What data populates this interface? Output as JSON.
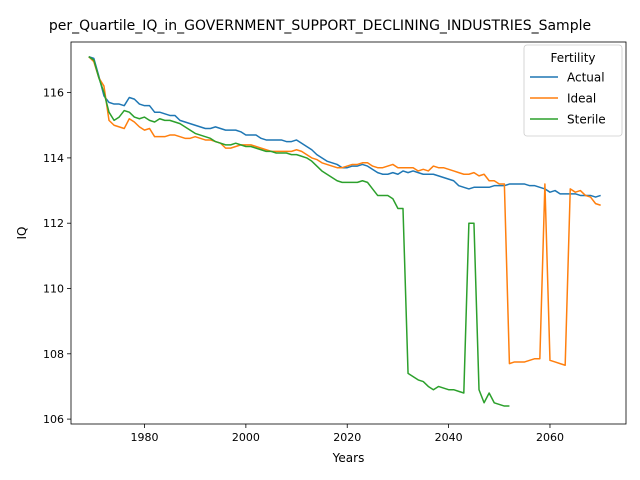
{
  "chart_data": {
    "type": "line",
    "title": "per_Quartile_IQ_in_GOVERNMENT_SUPPORT_DECLINING_INDUSTRIES_Sample",
    "xlabel": "Years",
    "ylabel": "IQ",
    "xlim": [
      1965.5,
      2075
    ],
    "ylim": [
      105.85,
      117.55
    ],
    "x_ticks": [
      1980,
      2000,
      2020,
      2040,
      2060
    ],
    "x_tick_labels": [
      "1980",
      "2000",
      "2020",
      "2040",
      "2060"
    ],
    "y_ticks": [
      106,
      108,
      110,
      112,
      114,
      116
    ],
    "y_tick_labels": [
      "106",
      "108",
      "110",
      "112",
      "114",
      "116"
    ],
    "grid": false,
    "legend": {
      "title": "Fertility",
      "position": "top-right"
    },
    "series": [
      {
        "name": "Actual",
        "color": "#1f77b4",
        "x": [
          1969,
          1970,
          1971,
          1972,
          1973,
          1974,
          1975,
          1976,
          1977,
          1978,
          1979,
          1980,
          1981,
          1982,
          1983,
          1984,
          1985,
          1986,
          1987,
          1988,
          1989,
          1990,
          1991,
          1992,
          1993,
          1994,
          1995,
          1996,
          1997,
          1998,
          1999,
          2000,
          2001,
          2002,
          2003,
          2004,
          2005,
          2006,
          2007,
          2008,
          2009,
          2010,
          2011,
          2012,
          2013,
          2014,
          2015,
          2016,
          2017,
          2018,
          2019,
          2020,
          2021,
          2022,
          2023,
          2024,
          2025,
          2026,
          2027,
          2028,
          2029,
          2030,
          2031,
          2032,
          2033,
          2034,
          2035,
          2036,
          2037,
          2038,
          2039,
          2040,
          2041,
          2042,
          2043,
          2044,
          2045,
          2046,
          2047,
          2048,
          2049,
          2050,
          2051,
          2052,
          2053,
          2054,
          2055,
          2056,
          2057,
          2058,
          2059,
          2060,
          2061,
          2062,
          2063,
          2064,
          2065,
          2066,
          2067,
          2068,
          2069,
          2070
        ],
        "y": [
          117.1,
          117.05,
          116.5,
          115.9,
          115.7,
          115.65,
          115.65,
          115.6,
          115.85,
          115.8,
          115.65,
          115.6,
          115.6,
          115.4,
          115.4,
          115.35,
          115.3,
          115.3,
          115.15,
          115.1,
          115.05,
          115.0,
          114.95,
          114.9,
          114.9,
          114.95,
          114.9,
          114.85,
          114.85,
          114.85,
          114.8,
          114.7,
          114.7,
          114.7,
          114.6,
          114.55,
          114.55,
          114.55,
          114.55,
          114.5,
          114.5,
          114.55,
          114.45,
          114.35,
          114.25,
          114.1,
          114.0,
          113.9,
          113.85,
          113.8,
          113.7,
          113.7,
          113.75,
          113.75,
          113.8,
          113.75,
          113.65,
          113.55,
          113.5,
          113.5,
          113.55,
          113.5,
          113.6,
          113.55,
          113.6,
          113.55,
          113.5,
          113.5,
          113.5,
          113.45,
          113.4,
          113.35,
          113.3,
          113.15,
          113.1,
          113.05,
          113.1,
          113.1,
          113.1,
          113.1,
          113.15,
          113.15,
          113.15,
          113.2,
          113.2,
          113.2,
          113.2,
          113.15,
          113.15,
          113.1,
          113.05,
          112.95,
          113.0,
          112.9,
          112.9,
          112.9,
          112.9,
          112.85,
          112.85,
          112.85,
          112.8,
          112.85
        ]
      },
      {
        "name": "Ideal",
        "color": "#ff7f0e",
        "x": [
          1969,
          1970,
          1971,
          1972,
          1973,
          1974,
          1975,
          1976,
          1977,
          1978,
          1979,
          1980,
          1981,
          1982,
          1983,
          1984,
          1985,
          1986,
          1987,
          1988,
          1989,
          1990,
          1991,
          1992,
          1993,
          1994,
          1995,
          1996,
          1997,
          1998,
          1999,
          2000,
          2001,
          2002,
          2003,
          2004,
          2005,
          2006,
          2007,
          2008,
          2009,
          2010,
          2011,
          2012,
          2013,
          2014,
          2015,
          2016,
          2017,
          2018,
          2019,
          2020,
          2021,
          2022,
          2023,
          2024,
          2025,
          2026,
          2027,
          2028,
          2029,
          2030,
          2031,
          2032,
          2033,
          2034,
          2035,
          2036,
          2037,
          2038,
          2039,
          2040,
          2041,
          2042,
          2043,
          2044,
          2045,
          2046,
          2047,
          2048,
          2049,
          2050,
          2051,
          2052,
          2053,
          2054,
          2055,
          2056,
          2057,
          2058,
          2059,
          2060,
          2061,
          2062,
          2063,
          2064,
          2065,
          2066,
          2067,
          2068,
          2069,
          2070
        ],
        "y": [
          117.1,
          116.95,
          116.45,
          116.2,
          115.15,
          115.0,
          114.95,
          114.9,
          115.2,
          115.1,
          114.95,
          114.85,
          114.9,
          114.65,
          114.65,
          114.65,
          114.7,
          114.7,
          114.65,
          114.6,
          114.6,
          114.65,
          114.6,
          114.55,
          114.55,
          114.5,
          114.45,
          114.3,
          114.3,
          114.35,
          114.4,
          114.4,
          114.4,
          114.35,
          114.3,
          114.25,
          114.2,
          114.2,
          114.2,
          114.2,
          114.2,
          114.25,
          114.2,
          114.1,
          114.0,
          113.95,
          113.85,
          113.8,
          113.75,
          113.7,
          113.7,
          113.75,
          113.8,
          113.8,
          113.85,
          113.85,
          113.75,
          113.7,
          113.7,
          113.75,
          113.8,
          113.7,
          113.7,
          113.7,
          113.7,
          113.6,
          113.65,
          113.6,
          113.75,
          113.7,
          113.7,
          113.65,
          113.6,
          113.55,
          113.5,
          113.5,
          113.55,
          113.45,
          113.5,
          113.3,
          113.3,
          113.2,
          113.2,
          107.7,
          107.75,
          107.75,
          107.75,
          107.8,
          107.85,
          107.85,
          113.2,
          107.8,
          107.75,
          107.7,
          107.65,
          113.05,
          112.95,
          113.0,
          112.85,
          112.8,
          112.6,
          112.55
        ]
      },
      {
        "name": "Sterile",
        "color": "#2ca02c",
        "x": [
          1969,
          1970,
          1971,
          1972,
          1973,
          1974,
          1975,
          1976,
          1977,
          1978,
          1979,
          1980,
          1981,
          1982,
          1983,
          1984,
          1985,
          1986,
          1987,
          1988,
          1989,
          1990,
          1991,
          1992,
          1993,
          1994,
          1995,
          1996,
          1997,
          1998,
          1999,
          2000,
          2001,
          2002,
          2003,
          2004,
          2005,
          2006,
          2007,
          2008,
          2009,
          2010,
          2011,
          2012,
          2013,
          2014,
          2015,
          2016,
          2017,
          2018,
          2019,
          2020,
          2021,
          2022,
          2023,
          2024,
          2025,
          2026,
          2027,
          2028,
          2029,
          2030,
          2031,
          2032,
          2033,
          2034,
          2035,
          2036,
          2037,
          2038,
          2039,
          2040,
          2041,
          2042,
          2043,
          2044,
          2045,
          2046,
          2047,
          2048,
          2049,
          2050,
          2051,
          2052
        ],
        "y": [
          117.1,
          117.0,
          116.45,
          116.0,
          115.4,
          115.15,
          115.25,
          115.45,
          115.4,
          115.25,
          115.2,
          115.25,
          115.15,
          115.1,
          115.2,
          115.15,
          115.15,
          115.1,
          115.05,
          114.95,
          114.85,
          114.75,
          114.7,
          114.65,
          114.6,
          114.5,
          114.45,
          114.4,
          114.4,
          114.45,
          114.4,
          114.35,
          114.35,
          114.3,
          114.25,
          114.2,
          114.2,
          114.15,
          114.15,
          114.15,
          114.1,
          114.1,
          114.05,
          114.0,
          113.9,
          113.75,
          113.6,
          113.5,
          113.4,
          113.3,
          113.25,
          113.25,
          113.25,
          113.25,
          113.3,
          113.25,
          113.05,
          112.85,
          112.85,
          112.85,
          112.75,
          112.45,
          112.45,
          107.4,
          107.3,
          107.2,
          107.15,
          107.0,
          106.9,
          107.0,
          106.95,
          106.9,
          106.9,
          106.85,
          106.8,
          112.0,
          112.0,
          106.9,
          106.5,
          106.8,
          106.5,
          106.45,
          106.4,
          106.4
        ]
      }
    ]
  }
}
